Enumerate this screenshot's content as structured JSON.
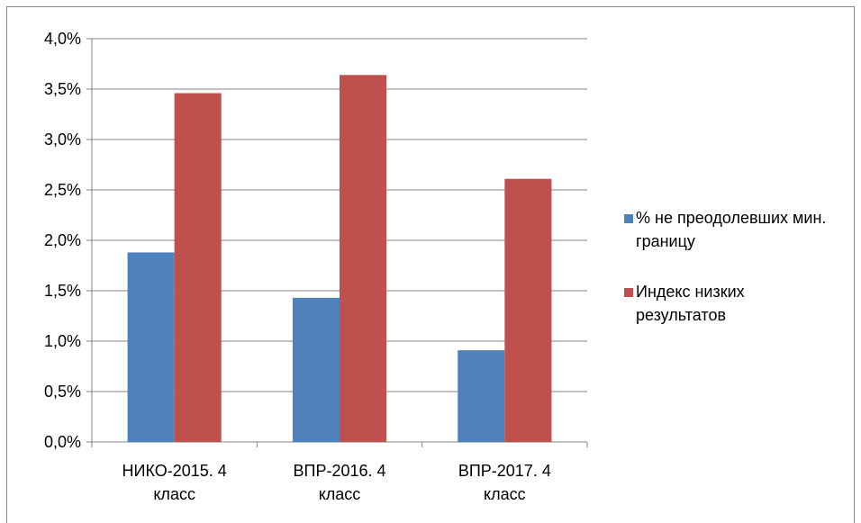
{
  "chart_data": {
    "type": "bar",
    "categories": [
      "НИКО-2015. 4 класс",
      "ВПР-2016. 4 класс",
      "ВПР-2017. 4 класс"
    ],
    "series": [
      {
        "name": "% не преодолевших мин. границу",
        "color": "#4f81bd",
        "values": [
          1.88,
          1.43,
          0.91
        ]
      },
      {
        "name": "Индекс низких результатов",
        "color": "#c0504d",
        "values": [
          3.46,
          3.64,
          2.61
        ]
      }
    ],
    "ylim": [
      0,
      4
    ],
    "yticks": [
      {
        "value": 0,
        "label": "0,0%"
      },
      {
        "value": 0.5,
        "label": "0,5%"
      },
      {
        "value": 1,
        "label": "1,0%"
      },
      {
        "value": 1.5,
        "label": "1,5%"
      },
      {
        "value": 2,
        "label": "2,0%"
      },
      {
        "value": 2.5,
        "label": "2,5%"
      },
      {
        "value": 3,
        "label": "3,0%"
      },
      {
        "value": 3.5,
        "label": "3,5%"
      },
      {
        "value": 4,
        "label": "4,0%"
      }
    ],
    "grid": true,
    "legend": "right"
  }
}
